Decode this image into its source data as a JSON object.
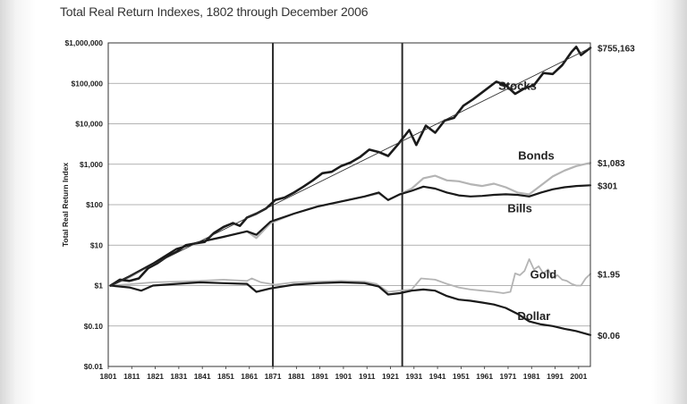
{
  "chart_data": {
    "type": "line",
    "title": "Total Real Return Indexes, 1802 through December 2006",
    "ylabel": "Total Real Return Index",
    "xlabel": "",
    "yscale": "log",
    "ylim": [
      0.01,
      1000000
    ],
    "xlim": [
      1801,
      2006
    ],
    "y_ticks": [
      {
        "value": 0.01,
        "label": "$0.01"
      },
      {
        "value": 0.1,
        "label": "$0.10"
      },
      {
        "value": 1,
        "label": "$1"
      },
      {
        "value": 10,
        "label": "$10"
      },
      {
        "value": 100,
        "label": "$100"
      },
      {
        "value": 1000,
        "label": "$1,000"
      },
      {
        "value": 10000,
        "label": "$10,000"
      },
      {
        "value": 100000,
        "label": "$100,000"
      },
      {
        "value": 1000000,
        "label": "$1,000,000"
      }
    ],
    "x_ticks": [
      "1801",
      "1811",
      "1821",
      "1831",
      "1841",
      "1851",
      "1861",
      "1871",
      "1881",
      "1891",
      "1901",
      "1911",
      "1921",
      "1931",
      "1941",
      "1951",
      "1961",
      "1971",
      "1981",
      "1991",
      "2001"
    ],
    "vertical_lines": [
      1871,
      1926
    ],
    "grid": "horizontal",
    "series": [
      {
        "name": "Stocks",
        "end_label": "$755,163",
        "color": "#1a1a1a",
        "width": 2.6,
        "x": [
          1802,
          1806,
          1810,
          1814,
          1818,
          1822,
          1826,
          1830,
          1834,
          1838,
          1842,
          1846,
          1850,
          1854,
          1857,
          1860,
          1864,
          1868,
          1872,
          1876,
          1880,
          1884,
          1888,
          1892,
          1896,
          1900,
          1904,
          1908,
          1912,
          1916,
          1920,
          1924,
          1929,
          1932,
          1936,
          1940,
          1944,
          1948,
          1952,
          1956,
          1960,
          1966,
          1970,
          1974,
          1978,
          1982,
          1986,
          1990,
          1994,
          1998,
          2000,
          2002,
          2006
        ],
        "values": [
          1,
          1.4,
          1.3,
          1.5,
          2.7,
          3.6,
          5.2,
          6.8,
          10,
          11,
          12,
          20,
          28,
          35,
          30,
          48,
          60,
          80,
          130,
          150,
          200,
          280,
          400,
          600,
          650,
          900,
          1100,
          1500,
          2300,
          2000,
          1600,
          3000,
          7000,
          3000,
          9000,
          6000,
          12000,
          14000,
          28000,
          40000,
          60000,
          110000,
          90000,
          55000,
          75000,
          90000,
          180000,
          170000,
          280000,
          600000,
          800000,
          500000,
          755163
        ]
      },
      {
        "name": "Bonds",
        "end_label": "$1,083",
        "color": "#b4b4b4",
        "width": 2.2,
        "x": [
          1802,
          1810,
          1820,
          1830,
          1840,
          1850,
          1860,
          1864,
          1870,
          1880,
          1890,
          1900,
          1910,
          1916,
          1920,
          1925,
          1930,
          1935,
          1940,
          1945,
          1950,
          1955,
          1960,
          1965,
          1970,
          1975,
          1980,
          1985,
          1990,
          1995,
          2000,
          2006
        ],
        "values": [
          1,
          1.6,
          3.5,
          8,
          12,
          16,
          22,
          15,
          35,
          60,
          90,
          120,
          160,
          190,
          130,
          180,
          250,
          450,
          520,
          400,
          380,
          320,
          290,
          330,
          270,
          200,
          180,
          300,
          500,
          700,
          900,
          1083
        ]
      },
      {
        "name": "Bills",
        "end_label": "$301",
        "color": "#1a1a1a",
        "width": 2.2,
        "x": [
          1802,
          1810,
          1820,
          1830,
          1840,
          1850,
          1860,
          1864,
          1870,
          1880,
          1890,
          1900,
          1910,
          1916,
          1920,
          1925,
          1930,
          1935,
          1940,
          1945,
          1950,
          1955,
          1960,
          1965,
          1970,
          1975,
          1980,
          1985,
          1990,
          1995,
          2000,
          2006
        ],
        "values": [
          1,
          1.7,
          3.5,
          8,
          12,
          16,
          22,
          18,
          38,
          60,
          90,
          120,
          160,
          200,
          130,
          180,
          220,
          280,
          250,
          200,
          170,
          160,
          165,
          175,
          180,
          175,
          160,
          200,
          240,
          270,
          290,
          301
        ]
      },
      {
        "name": "Gold",
        "end_label": "$1.95",
        "color": "#b4b4b4",
        "width": 1.8,
        "x": [
          1802,
          1812,
          1820,
          1830,
          1840,
          1850,
          1860,
          1862,
          1866,
          1872,
          1880,
          1890,
          1900,
          1910,
          1915,
          1920,
          1925,
          1930,
          1934,
          1940,
          1945,
          1950,
          1955,
          1960,
          1965,
          1969,
          1972,
          1974,
          1976,
          1978,
          1980,
          1982,
          1984,
          1986,
          1988,
          1990,
          1992,
          1994,
          1996,
          1998,
          2000,
          2002,
          2004,
          2006
        ],
        "values": [
          1,
          1.1,
          1.2,
          1.25,
          1.3,
          1.4,
          1.3,
          1.5,
          1.2,
          1.05,
          1.2,
          1.25,
          1.3,
          1.25,
          1.1,
          0.7,
          0.75,
          0.8,
          1.5,
          1.4,
          1.1,
          0.9,
          0.8,
          0.75,
          0.7,
          0.65,
          0.7,
          2,
          1.8,
          2.3,
          4.5,
          2.5,
          3,
          2,
          2.5,
          1.6,
          1.8,
          1.4,
          1.3,
          1.1,
          1.0,
          1.0,
          1.5,
          1.95
        ]
      },
      {
        "name": "Dollar",
        "end_label": "$0.06",
        "color": "#1a1a1a",
        "width": 2.2,
        "x": [
          1802,
          1810,
          1815,
          1820,
          1830,
          1840,
          1850,
          1860,
          1864,
          1870,
          1880,
          1890,
          1900,
          1910,
          1916,
          1920,
          1925,
          1930,
          1935,
          1940,
          1945,
          1950,
          1955,
          1960,
          1965,
          1970,
          1975,
          1980,
          1985,
          1990,
          1995,
          2000,
          2006
        ],
        "values": [
          1,
          0.9,
          0.75,
          1,
          1.1,
          1.2,
          1.15,
          1.1,
          0.7,
          0.85,
          1.05,
          1.15,
          1.2,
          1.15,
          0.95,
          0.6,
          0.65,
          0.75,
          0.8,
          0.75,
          0.55,
          0.45,
          0.42,
          0.38,
          0.34,
          0.28,
          0.2,
          0.13,
          0.11,
          0.1,
          0.085,
          0.075,
          0.06
        ]
      }
    ],
    "trend_line": {
      "from": [
        1802,
        1
      ],
      "to": [
        2006,
        755163
      ]
    }
  }
}
